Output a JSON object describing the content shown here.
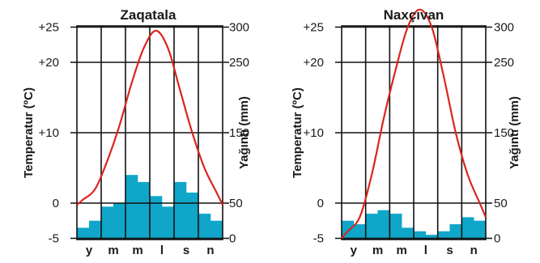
{
  "chart_data": [
    {
      "type": "bar",
      "title": "Zaqatala",
      "ylabel": "Temperatur (ºC)",
      "y2label": "Yağıntı (mm)",
      "categories": [
        "y",
        "m",
        "m",
        "l",
        "s",
        "n"
      ],
      "temperature_ticks": [
        "+25",
        "+20",
        "+10",
        "0",
        "-5"
      ],
      "precipitation_ticks": [
        "300",
        "250",
        "150",
        "50",
        "0"
      ],
      "temperature_range": [
        -5,
        30
      ],
      "precipitation_range": [
        0,
        350
      ],
      "temperature_monthly": [
        0.5,
        2,
        6,
        11,
        17,
        22,
        24.5,
        22,
        16,
        10,
        5,
        1.5
      ],
      "precipitation_monthly": [
        15,
        25,
        45,
        50,
        90,
        80,
        60,
        45,
        80,
        65,
        35,
        25
      ],
      "colors": {
        "temperature": "#d9261c",
        "precipitation": "#0fa6c9"
      }
    },
    {
      "type": "bar",
      "title": "Naxçıvan",
      "ylabel": "Temperatur (ºC)",
      "y2label": "Yağıntı (mm)",
      "categories": [
        "y",
        "m",
        "m",
        "l",
        "s",
        "n"
      ],
      "temperature_ticks": [
        "+25",
        "+20",
        "+10",
        "0",
        "-5"
      ],
      "precipitation_ticks": [
        "300",
        "250",
        "150",
        "50",
        "0"
      ],
      "temperature_range": [
        -5,
        30
      ],
      "precipitation_range": [
        0,
        350
      ],
      "temperature_monthly": [
        -4,
        -2,
        4,
        12,
        19,
        25,
        27.5,
        25,
        18,
        10,
        4,
        0
      ],
      "precipitation_monthly": [
        25,
        20,
        35,
        40,
        35,
        15,
        10,
        5,
        10,
        20,
        30,
        25
      ],
      "colors": {
        "temperature": "#d9261c",
        "precipitation": "#0fa6c9"
      }
    }
  ]
}
